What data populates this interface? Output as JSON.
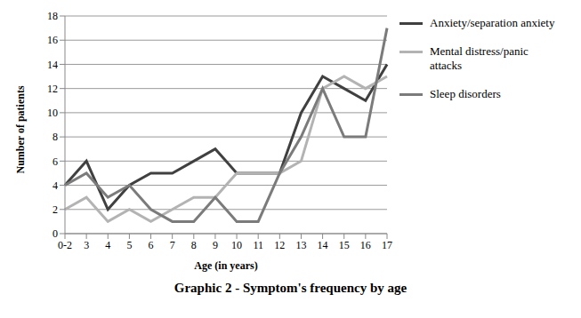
{
  "chart_data": {
    "type": "line",
    "title": "Graphic 2 - Symptom's frequency by age",
    "x_label": "Age (in years)",
    "y_label": "Number of patients",
    "categories": [
      "0-2",
      "3",
      "4",
      "5",
      "6",
      "7",
      "8",
      "9",
      "10",
      "11",
      "12",
      "13",
      "14",
      "15",
      "16",
      "17"
    ],
    "series": [
      {
        "name": "Anxiety/separation anxiety",
        "color": "#404040",
        "values": [
          4,
          6,
          2,
          4,
          5,
          5,
          6,
          7,
          5,
          5,
          5,
          10,
          13,
          12,
          11,
          14
        ]
      },
      {
        "name": "Mental distress/panic attacks",
        "color": "#b3b3b3",
        "values": [
          2,
          3,
          1,
          2,
          1,
          2,
          3,
          3,
          5,
          5,
          5,
          6,
          12,
          13,
          12,
          13
        ]
      },
      {
        "name": "Sleep disorders",
        "color": "#7b7b7b",
        "values": [
          4,
          5,
          3,
          4,
          2,
          1,
          1,
          3,
          1,
          1,
          5,
          8,
          12,
          8,
          8,
          17
        ]
      }
    ],
    "ylim": [
      0,
      18
    ],
    "yticks": [
      0,
      2,
      4,
      6,
      8,
      10,
      12,
      14,
      16,
      18
    ],
    "grid": true,
    "legend": "right"
  }
}
